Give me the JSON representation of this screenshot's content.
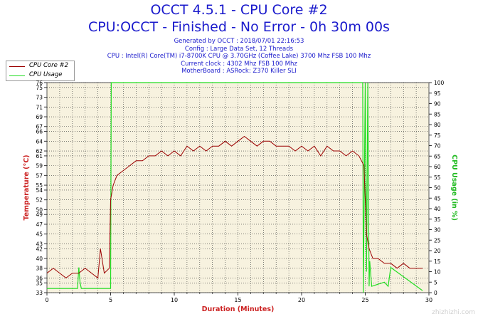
{
  "header": {
    "title": "OCCT 4.5.1 - CPU Core #2",
    "subtitle": "CPU:OCCT - Finished - No Error - 0h 30m 00s",
    "info_lines": [
      "Generated by OCCT : 2018/07/01 22:16:53",
      "Config : Large Data Set, 12 Threads",
      "CPU : Intel(R) Core(TM) i7-8700K CPU @ 3.70GHz (Coffee Lake) 3700 Mhz FSB 100 Mhz",
      "Current clock : 4302 Mhz FSB 100 Mhz",
      "MotherBoard : ASRock: Z370 Killer SLI"
    ]
  },
  "watermark": "zhizhizhi.com",
  "colors": {
    "temp": "#9b0000",
    "usage": "#22dd22",
    "plot_bg": "#f7f2df",
    "grid": "#333333",
    "axis_label": "#cc2222",
    "usage_label": "#22bb22",
    "title": "#1a1acc"
  },
  "chart_data": {
    "type": "line",
    "title": "OCCT 4.5.1 - CPU Core #2",
    "xlabel": "Duration (Minutes)",
    "ylabel_left": "Temperature (°C)",
    "ylabel_right": "CPU Usage (in %)",
    "xlim": [
      0,
      30
    ],
    "ylim_left": [
      33,
      76
    ],
    "ylim_right": [
      0,
      100
    ],
    "grid": true,
    "legend_position": "top-left",
    "x_ticks": [
      "0",
      "5",
      "10",
      "15",
      "20",
      "25",
      "30"
    ],
    "y_left_ticks": [
      "33",
      "35",
      "36",
      "38",
      "40",
      "42",
      "43",
      "45",
      "47",
      "49",
      "50",
      "52",
      "54",
      "55",
      "57",
      "59",
      "61",
      "62",
      "64",
      "66",
      "67",
      "69",
      "71",
      "73",
      "75",
      "76"
    ],
    "y_right_ticks": [
      "0",
      "5",
      "10",
      "15",
      "20",
      "25",
      "30",
      "35",
      "40",
      "45",
      "50",
      "55",
      "60",
      "65",
      "70",
      "75",
      "80",
      "85",
      "90",
      "95",
      "100"
    ],
    "series": [
      {
        "name": "CPU Core #2",
        "axis": "left",
        "x": [
          0,
          0.5,
          1,
          1.5,
          2,
          2.5,
          3,
          3.5,
          4,
          4.2,
          4.5,
          4.9,
          5.0,
          5.2,
          5.5,
          6,
          6.5,
          7,
          7.5,
          8,
          8.5,
          9,
          9.5,
          10,
          10.5,
          11,
          11.5,
          12,
          12.5,
          13,
          13.5,
          14,
          14.5,
          15,
          15.5,
          16,
          16.5,
          17,
          17.5,
          18,
          18.5,
          19,
          19.5,
          20,
          20.5,
          21,
          21.5,
          22,
          22.5,
          23,
          23.5,
          24,
          24.5,
          24.9,
          25.1,
          25.3,
          25.6,
          26,
          26.5,
          27,
          27.5,
          28,
          28.5,
          29,
          29.5
        ],
        "values": [
          37,
          38,
          37,
          36,
          37,
          37,
          38,
          37,
          36,
          42,
          37,
          38,
          52,
          55,
          57,
          58,
          59,
          60,
          60,
          61,
          61,
          62,
          61,
          62,
          61,
          63,
          62,
          63,
          62,
          63,
          63,
          64,
          63,
          64,
          65,
          64,
          63,
          64,
          64,
          63,
          63,
          63,
          62,
          63,
          62,
          63,
          61,
          63,
          62,
          62,
          61,
          62,
          61,
          59,
          45,
          42,
          40,
          40,
          39,
          39,
          38,
          39,
          38,
          38,
          38
        ]
      },
      {
        "name": "CPU Usage",
        "axis": "right",
        "x": [
          0,
          2.4,
          2.5,
          2.6,
          2.7,
          5.0,
          5.05,
          24.8,
          24.85,
          25.0,
          25.1,
          25.2,
          25.3,
          25.35,
          25.5,
          26.0,
          26.5,
          26.8,
          27.0,
          29.5
        ],
        "values": [
          2,
          2,
          12,
          5,
          2,
          2,
          100,
          100,
          0,
          100,
          10,
          100,
          3,
          15,
          3,
          4,
          5,
          3,
          12,
          1
        ]
      }
    ]
  }
}
